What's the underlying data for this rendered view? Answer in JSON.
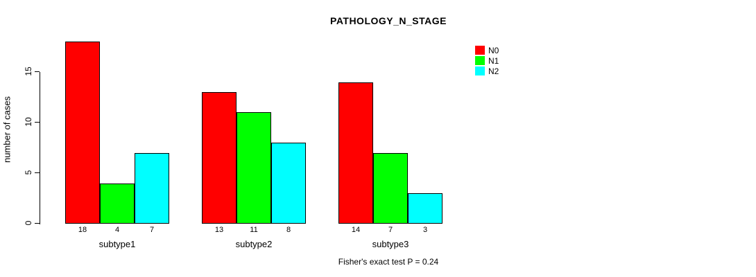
{
  "title": "PATHOLOGY_N_STAGE",
  "y_axis": {
    "label": "number of cases",
    "ticks": [
      "0",
      "5",
      "10",
      "15"
    ]
  },
  "legend": {
    "items": [
      {
        "label": "N0",
        "color": "#ff0000"
      },
      {
        "label": "N1",
        "color": "#00ff00"
      },
      {
        "label": "N2",
        "color": "#00ffff"
      }
    ]
  },
  "footer": {
    "text": "Fisher's exact test P = 0.24"
  },
  "chart_data": {
    "type": "bar",
    "title": "PATHOLOGY_N_STAGE",
    "categories": [
      "subtype1",
      "subtype2",
      "subtype3"
    ],
    "series": [
      {
        "name": "N0",
        "color": "#ff0000",
        "values": [
          18,
          13,
          14
        ]
      },
      {
        "name": "N1",
        "color": "#00ff00",
        "values": [
          4,
          11,
          7
        ]
      },
      {
        "name": "N2",
        "color": "#00ffff",
        "values": [
          7,
          8,
          3
        ]
      }
    ],
    "bar_value_labels": [
      [
        "18",
        "4",
        "7"
      ],
      [
        "13",
        "11",
        "8"
      ],
      [
        "14",
        "7",
        "3"
      ]
    ],
    "xlabel": "",
    "ylabel": "number of cases",
    "ylim": [
      0,
      18.6
    ],
    "y_ticks": [
      0,
      5,
      10,
      15
    ],
    "grid": false,
    "legend_position": "inside-top-right",
    "annotation": "Fisher's exact test P = 0.24"
  }
}
